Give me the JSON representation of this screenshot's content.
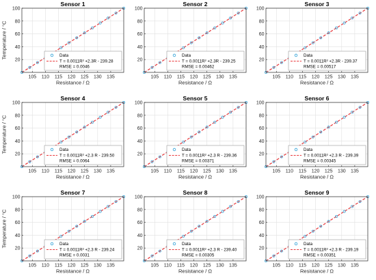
{
  "colors": {
    "data_marker": "#2a9fd6",
    "fit_line": "#e8383b",
    "grid": "#e0e0e0",
    "axes": "#262626"
  },
  "chart_data": [
    {
      "type": "scatter",
      "title": "Sensor 1",
      "xlabel": "Resistance / Ω",
      "ylabel": "Temperature / °C",
      "xlim": [
        101,
        140
      ],
      "ylim": [
        0,
        100
      ],
      "xticks": [
        "105",
        "110",
        "115",
        "120",
        "125",
        "130",
        "135"
      ],
      "yticks": [
        "20",
        "40",
        "60",
        "80",
        "100"
      ],
      "x": [
        101,
        104,
        107,
        110,
        113,
        116,
        119,
        122,
        125,
        128,
        131,
        134,
        137,
        140
      ],
      "y": [
        0,
        7.7,
        15.4,
        23.1,
        30.8,
        38.5,
        46.2,
        53.9,
        61.6,
        69.3,
        77,
        84.7,
        92.4,
        100
      ],
      "grid": true,
      "legend_position": "bottom-right",
      "legend": {
        "data": "Data",
        "fit": "T = 0.0011R² +2.3R - 239.28",
        "rmse": "RMSE = 0.0046"
      }
    },
    {
      "type": "scatter",
      "title": "Sensor 2",
      "xlabel": "Resistance / Ω",
      "ylabel": "",
      "xlim": [
        101,
        140
      ],
      "ylim": [
        0,
        100
      ],
      "xticks": [
        "105",
        "110",
        "115",
        "120",
        "125",
        "130",
        "135"
      ],
      "yticks": [
        "20",
        "40",
        "60",
        "80",
        "100"
      ],
      "x": [
        101,
        104,
        107,
        110,
        113,
        116,
        119,
        122,
        125,
        128,
        131,
        134,
        137,
        140
      ],
      "y": [
        0,
        7.7,
        15.4,
        23.1,
        30.8,
        38.5,
        46.2,
        53.9,
        61.6,
        69.3,
        77,
        84.7,
        92.4,
        100
      ],
      "grid": true,
      "legend_position": "bottom-right",
      "legend": {
        "data": "Data",
        "fit": "T = 0.0011R² +2.3R - 239.25",
        "rmse": "RMSE = 0.00462"
      }
    },
    {
      "type": "scatter",
      "title": "Sensor 3",
      "xlabel": "Resistance / Ω",
      "ylabel": "",
      "xlim": [
        101,
        140
      ],
      "ylim": [
        0,
        100
      ],
      "xticks": [
        "105",
        "110",
        "115",
        "120",
        "125",
        "130",
        "135"
      ],
      "yticks": [
        "20",
        "40",
        "60",
        "80",
        "100"
      ],
      "x": [
        101,
        104,
        107,
        110,
        113,
        116,
        119,
        122,
        125,
        128,
        131,
        134,
        137,
        140
      ],
      "y": [
        0,
        7.7,
        15.4,
        23.1,
        30.8,
        38.5,
        46.2,
        53.9,
        61.6,
        69.3,
        77,
        84.7,
        92.4,
        100
      ],
      "grid": true,
      "legend_position": "bottom-right",
      "legend": {
        "data": "Data",
        "fit": "T = 0.0011R² +2.3R - 239.37",
        "rmse": "RMSE = 0.00517"
      }
    },
    {
      "type": "scatter",
      "title": "Sensor 4",
      "xlabel": "Resistance / Ω",
      "ylabel": "Temperature / °C",
      "xlim": [
        101,
        140
      ],
      "ylim": [
        0,
        100
      ],
      "xticks": [
        "105",
        "110",
        "115",
        "120",
        "125",
        "130",
        "135"
      ],
      "yticks": [
        "20",
        "40",
        "60",
        "80",
        "100"
      ],
      "x": [
        101,
        104,
        107,
        110,
        113,
        116,
        119,
        122,
        125,
        128,
        131,
        134,
        137,
        140
      ],
      "y": [
        0,
        7.7,
        15.4,
        23.1,
        30.8,
        38.5,
        46.2,
        53.9,
        61.6,
        69.3,
        77,
        84.7,
        92.4,
        100
      ],
      "grid": true,
      "legend_position": "bottom-right",
      "legend": {
        "data": "Data",
        "fit": "T = 0.0011R² +2.3 R - 239.50",
        "rmse": "RMSE = 0.0064"
      }
    },
    {
      "type": "scatter",
      "title": "Sensor 5",
      "xlabel": "Resistance / Ω",
      "ylabel": "",
      "xlim": [
        101,
        140
      ],
      "ylim": [
        0,
        100
      ],
      "xticks": [
        "105",
        "110",
        "115",
        "120",
        "125",
        "130",
        "135"
      ],
      "yticks": [
        "20",
        "40",
        "60",
        "80",
        "100"
      ],
      "x": [
        101,
        104,
        107,
        110,
        113,
        116,
        119,
        122,
        125,
        128,
        131,
        134,
        137,
        140
      ],
      "y": [
        0,
        7.7,
        15.4,
        23.1,
        30.8,
        38.5,
        46.2,
        53.9,
        61.6,
        69.3,
        77,
        84.7,
        92.4,
        100
      ],
      "grid": true,
      "legend_position": "bottom-right",
      "legend": {
        "data": "Data",
        "fit": "T = 0.0011R² +2.3 R - 239.36",
        "rmse": "RMSE = 0.00371"
      }
    },
    {
      "type": "scatter",
      "title": "Sensor 6",
      "xlabel": "Resistance / Ω",
      "ylabel": "",
      "xlim": [
        101,
        140
      ],
      "ylim": [
        0,
        100
      ],
      "xticks": [
        "105",
        "110",
        "115",
        "120",
        "125",
        "130",
        "135"
      ],
      "yticks": [
        "20",
        "40",
        "60",
        "80",
        "100"
      ],
      "x": [
        101,
        104,
        107,
        110,
        113,
        116,
        119,
        122,
        125,
        128,
        131,
        134,
        137,
        140
      ],
      "y": [
        0,
        7.7,
        15.4,
        23.1,
        30.8,
        38.5,
        46.2,
        53.9,
        61.6,
        69.3,
        77,
        84.7,
        92.4,
        100
      ],
      "grid": true,
      "legend_position": "bottom-right",
      "legend": {
        "data": "Data",
        "fit": "T = 0.0011R² +2.3 R - 239.39",
        "rmse": "RMSE = 0.00345"
      }
    },
    {
      "type": "scatter",
      "title": "Sensor 7",
      "xlabel": "Resistance / Ω",
      "ylabel": "Temperature / °C",
      "xlim": [
        101,
        140
      ],
      "ylim": [
        0,
        100
      ],
      "xticks": [
        "105",
        "110",
        "115",
        "120",
        "125",
        "130",
        "135"
      ],
      "yticks": [
        "20",
        "40",
        "60",
        "80",
        "100"
      ],
      "x": [
        101,
        104,
        107,
        110,
        113,
        116,
        119,
        122,
        125,
        128,
        131,
        134,
        137,
        140
      ],
      "y": [
        0,
        7.7,
        15.4,
        23.1,
        30.8,
        38.5,
        46.2,
        53.9,
        61.6,
        69.3,
        77,
        84.7,
        92.4,
        100
      ],
      "grid": true,
      "legend_position": "bottom-right",
      "legend": {
        "data": "Data",
        "fit": "T = 0.0011R² +2.3 R - 239.24",
        "rmse": "RMSE = 0.0031"
      }
    },
    {
      "type": "scatter",
      "title": "Sensor 8",
      "xlabel": "Resistance / Ω",
      "ylabel": "",
      "xlim": [
        101,
        140
      ],
      "ylim": [
        0,
        100
      ],
      "xticks": [
        "105",
        "110",
        "115",
        "120",
        "125",
        "130",
        "135"
      ],
      "yticks": [
        "20",
        "40",
        "60",
        "80",
        "100"
      ],
      "x": [
        101,
        104,
        107,
        110,
        113,
        116,
        119,
        122,
        125,
        128,
        131,
        134,
        137,
        140
      ],
      "y": [
        0,
        7.7,
        15.4,
        23.1,
        30.8,
        38.5,
        46.2,
        53.9,
        61.6,
        69.3,
        77,
        84.7,
        92.4,
        100
      ],
      "grid": true,
      "legend_position": "bottom-right",
      "legend": {
        "data": "Data",
        "fit": "T = 0.0011R² +2.3 R - 239.40",
        "rmse": "RMSE = 0.00305"
      }
    },
    {
      "type": "scatter",
      "title": "Sensor 9",
      "xlabel": "Resistance / Ω",
      "ylabel": "",
      "xlim": [
        101,
        140
      ],
      "ylim": [
        0,
        100
      ],
      "xticks": [
        "105",
        "110",
        "115",
        "120",
        "125",
        "130",
        "135"
      ],
      "yticks": [
        "20",
        "40",
        "60",
        "80",
        "100"
      ],
      "x": [
        101,
        104,
        107,
        110,
        113,
        116,
        119,
        122,
        125,
        128,
        131,
        134,
        137,
        140
      ],
      "y": [
        0,
        7.7,
        15.4,
        23.1,
        30.8,
        38.5,
        46.2,
        53.9,
        61.6,
        69.3,
        77,
        84.7,
        92.4,
        100
      ],
      "grid": true,
      "legend_position": "bottom-right",
      "legend": {
        "data": "Data",
        "fit": "T = 0.0011R² +2.3 R - 239.19",
        "rmse": "RMSE = 0.00351"
      }
    }
  ]
}
